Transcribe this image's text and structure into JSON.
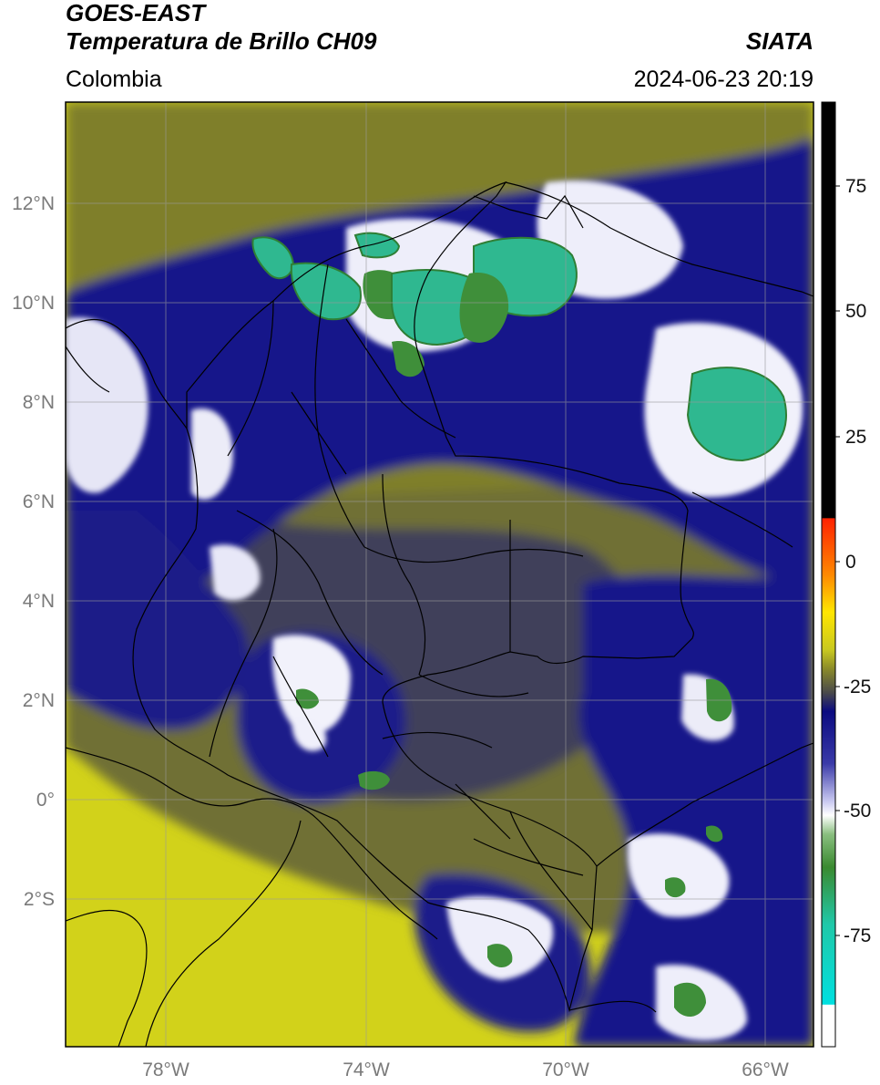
{
  "header": {
    "satellite": "GOES-EAST",
    "product": "Temperatura de Brillo CH09",
    "region": "Colombia",
    "brand": "SIATA",
    "datetime": "2024-06-23 20:19"
  },
  "axes": {
    "lat_labels": [
      "12°N",
      "10°N",
      "8°N",
      "6°N",
      "4°N",
      "2°N",
      "0°",
      "2°S"
    ],
    "lon_labels": [
      "78°W",
      "74°W",
      "70°W",
      "66°W"
    ]
  },
  "colorbar": {
    "tick_labels": [
      "75",
      "50",
      "25",
      "0",
      "-25",
      "-50",
      "-75"
    ],
    "colors": {
      "black": "#000000",
      "red": "#ff2200",
      "orange": "#ff9900",
      "yellow": "#ffee00",
      "olive": "#9a9a20",
      "navy": "#0a0a80",
      "lavender": "#c8c8f0",
      "white": "#ffffff",
      "green": "#3a8a30",
      "teal": "#20c8a8",
      "cyan": "#00e0e0"
    }
  },
  "map_colors": {
    "land_yellow": "#d2d21a",
    "olive": "#7a7a2a",
    "dark_grey": "#3f3f5a",
    "navy": "#14148a",
    "white_cloud": "#f2f2fb",
    "green": "#3f8f3a",
    "teal": "#2fb890",
    "border": "#000000",
    "grid": "#9a9a9a"
  }
}
